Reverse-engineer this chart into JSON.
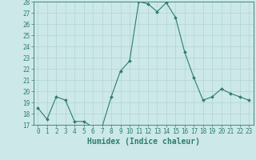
{
  "x": [
    0,
    1,
    2,
    3,
    4,
    5,
    6,
    7,
    8,
    9,
    10,
    11,
    12,
    13,
    14,
    15,
    16,
    17,
    18,
    19,
    20,
    21,
    22,
    23
  ],
  "y": [
    18.5,
    17.5,
    19.5,
    19.2,
    17.3,
    17.3,
    16.8,
    16.8,
    19.5,
    21.8,
    22.7,
    28.0,
    27.8,
    27.1,
    27.9,
    26.6,
    23.5,
    21.2,
    19.2,
    19.5,
    20.2,
    19.8,
    19.5,
    19.2
  ],
  "xlabel": "Humidex (Indice chaleur)",
  "ylim": [
    17,
    28
  ],
  "xlim_min": -0.5,
  "xlim_max": 23.5,
  "yticks": [
    17,
    18,
    19,
    20,
    21,
    22,
    23,
    24,
    25,
    26,
    27,
    28
  ],
  "xticks": [
    0,
    1,
    2,
    3,
    4,
    5,
    6,
    7,
    8,
    9,
    10,
    11,
    12,
    13,
    14,
    15,
    16,
    17,
    18,
    19,
    20,
    21,
    22,
    23
  ],
  "line_color": "#2e7d6e",
  "marker": "D",
  "marker_size": 2.0,
  "bg_color": "#cce8e8",
  "grid_color": "#aacfcf",
  "tick_fontsize": 5.5,
  "xlabel_fontsize": 7.0,
  "linewidth": 0.8
}
